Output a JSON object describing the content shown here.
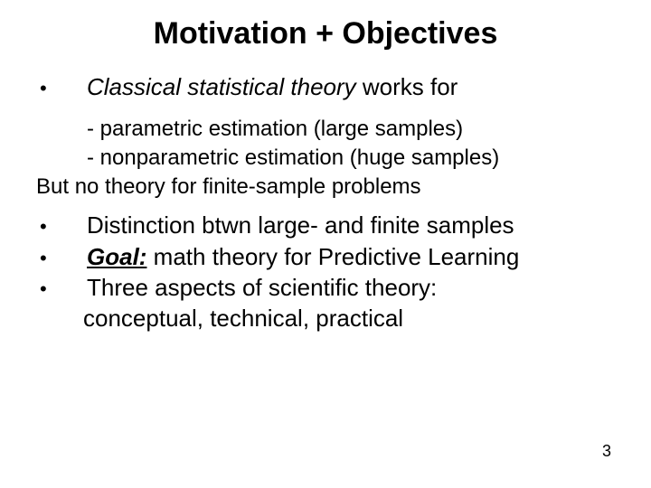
{
  "title": {
    "text": "Motivation + Objectives",
    "fontsize": 34,
    "weight": 700
  },
  "body_fontsize": 26,
  "sub_fontsize": 24,
  "colors": {
    "text": "#000000",
    "background": "#ffffff"
  },
  "line1": {
    "italic": "Classical statistical theory",
    "rest": " works for"
  },
  "sub": {
    "a": "- parametric estimation (large samples)",
    "b": "- nonparametric estimation (huge samples)",
    "c": "But no theory for finite-sample problems"
  },
  "b2": "Distinction btwn large- and finite samples",
  "b3": {
    "goal": "Goal:",
    "rest": " math theory for Predictive Learning"
  },
  "b4": {
    "a": "Three aspects of scientific theory:",
    "b": "conceptual, technical, practical"
  },
  "page_number": "3",
  "page_number_fontsize": 18
}
